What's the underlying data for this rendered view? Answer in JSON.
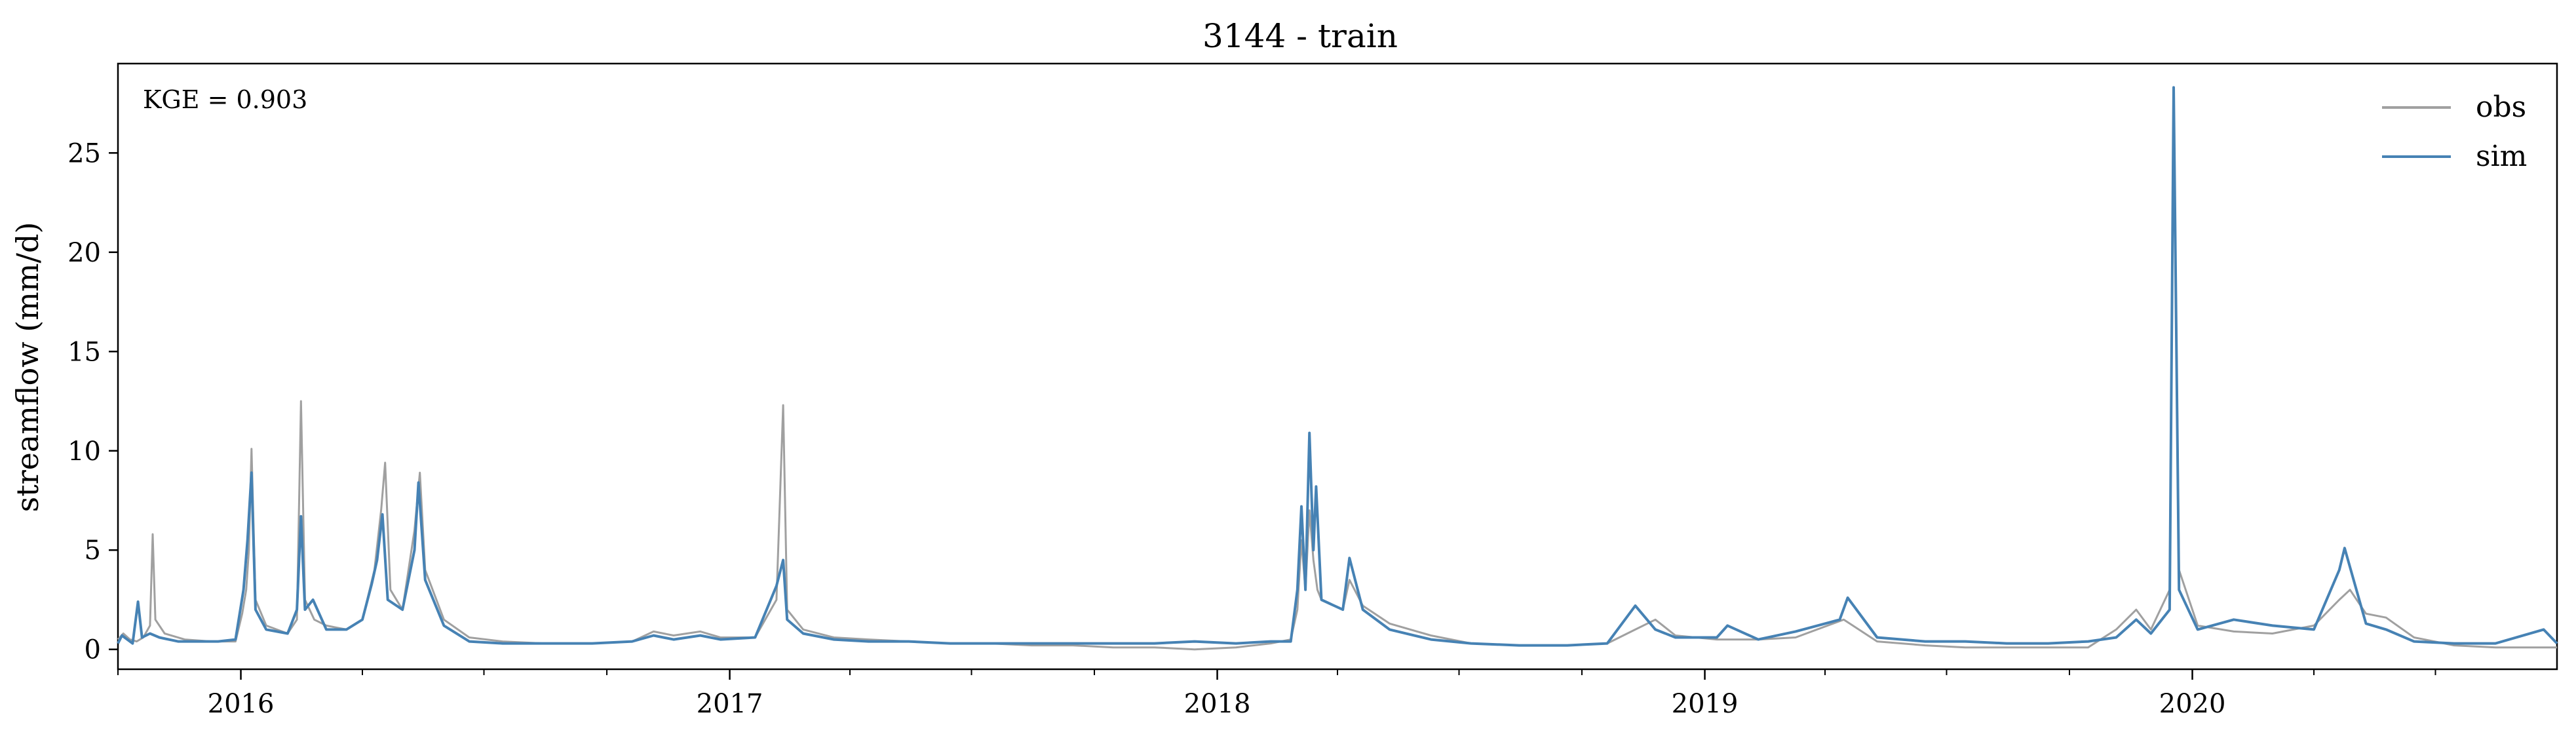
{
  "chart_data": {
    "type": "line",
    "title": "3144 - train",
    "xlabel": "",
    "ylabel": "streamflow (mm/d)",
    "annotation": "KGE = 0.903",
    "xlim": [
      "2015-10-01",
      "2020-09-30"
    ],
    "ylim": [
      -1,
      29.5
    ],
    "x_ticks": [
      "2016-01-01",
      "2017-01-01",
      "2018-01-01",
      "2019-01-01",
      "2020-01-01"
    ],
    "x_tick_labels": [
      "2016",
      "2017",
      "2018",
      "2019",
      "2020"
    ],
    "y_ticks": [
      0,
      5,
      10,
      15,
      20,
      25
    ],
    "y_tick_labels": [
      "0",
      "5",
      "10",
      "15",
      "20",
      "25"
    ],
    "grid": false,
    "legend": {
      "position": "top-right",
      "entries": [
        "obs",
        "sim"
      ]
    },
    "colors": {
      "obs": "#a0a0a0",
      "sim": "#4682b4"
    },
    "series": [
      {
        "name": "obs",
        "color": "#a0a0a0",
        "points": [
          [
            "2015-10-01",
            0.5
          ],
          [
            "2015-10-05",
            0.8
          ],
          [
            "2015-10-10",
            0.5
          ],
          [
            "2015-10-15",
            0.4
          ],
          [
            "2015-10-20",
            0.6
          ],
          [
            "2015-10-25",
            1.2
          ],
          [
            "2015-10-27",
            5.8
          ],
          [
            "2015-10-29",
            1.5
          ],
          [
            "2015-11-05",
            0.8
          ],
          [
            "2015-11-20",
            0.5
          ],
          [
            "2015-12-10",
            0.4
          ],
          [
            "2015-12-28",
            0.4
          ],
          [
            "2016-01-02",
            1.8
          ],
          [
            "2016-01-05",
            3.0
          ],
          [
            "2016-01-07",
            5.0
          ],
          [
            "2016-01-09",
            10.1
          ],
          [
            "2016-01-12",
            2.5
          ],
          [
            "2016-01-20",
            1.2
          ],
          [
            "2016-02-05",
            0.8
          ],
          [
            "2016-02-12",
            1.5
          ],
          [
            "2016-02-15",
            12.5
          ],
          [
            "2016-02-18",
            2.5
          ],
          [
            "2016-02-25",
            1.5
          ],
          [
            "2016-03-05",
            1.2
          ],
          [
            "2016-03-20",
            1.0
          ],
          [
            "2016-04-01",
            1.5
          ],
          [
            "2016-04-10",
            4.0
          ],
          [
            "2016-04-15",
            7.0
          ],
          [
            "2016-04-18",
            9.4
          ],
          [
            "2016-04-22",
            3.0
          ],
          [
            "2016-05-01",
            2.0
          ],
          [
            "2016-05-10",
            6.0
          ],
          [
            "2016-05-14",
            8.9
          ],
          [
            "2016-05-18",
            4.0
          ],
          [
            "2016-06-01",
            1.5
          ],
          [
            "2016-06-20",
            0.6
          ],
          [
            "2016-07-15",
            0.4
          ],
          [
            "2016-08-15",
            0.3
          ],
          [
            "2016-09-20",
            0.3
          ],
          [
            "2016-10-20",
            0.4
          ],
          [
            "2016-11-05",
            0.9
          ],
          [
            "2016-11-20",
            0.7
          ],
          [
            "2016-12-10",
            0.9
          ],
          [
            "2016-12-25",
            0.6
          ],
          [
            "2017-01-20",
            0.6
          ],
          [
            "2017-02-05",
            2.5
          ],
          [
            "2017-02-10",
            12.3
          ],
          [
            "2017-02-13",
            2.0
          ],
          [
            "2017-02-25",
            1.0
          ],
          [
            "2017-03-20",
            0.6
          ],
          [
            "2017-04-15",
            0.5
          ],
          [
            "2017-05-15",
            0.4
          ],
          [
            "2017-06-15",
            0.3
          ],
          [
            "2017-07-15",
            0.3
          ],
          [
            "2017-08-15",
            0.2
          ],
          [
            "2017-09-15",
            0.2
          ],
          [
            "2017-10-15",
            0.1
          ],
          [
            "2017-11-15",
            0.1
          ],
          [
            "2017-12-15",
            0.0
          ],
          [
            "2018-01-15",
            0.1
          ],
          [
            "2018-02-10",
            0.3
          ],
          [
            "2018-02-25",
            0.5
          ],
          [
            "2018-03-02",
            2.0
          ],
          [
            "2018-03-05",
            5.5
          ],
          [
            "2018-03-08",
            3.0
          ],
          [
            "2018-03-11",
            7.0
          ],
          [
            "2018-03-14",
            4.5
          ],
          [
            "2018-03-17",
            3.0
          ],
          [
            "2018-03-20",
            2.5
          ],
          [
            "2018-04-05",
            2.0
          ],
          [
            "2018-04-10",
            3.5
          ],
          [
            "2018-04-20",
            2.2
          ],
          [
            "2018-05-10",
            1.3
          ],
          [
            "2018-06-10",
            0.7
          ],
          [
            "2018-07-10",
            0.3
          ],
          [
            "2018-08-15",
            0.2
          ],
          [
            "2018-09-20",
            0.2
          ],
          [
            "2018-10-20",
            0.3
          ],
          [
            "2018-11-10",
            1.0
          ],
          [
            "2018-11-25",
            1.5
          ],
          [
            "2018-12-10",
            0.7
          ],
          [
            "2019-01-10",
            0.5
          ],
          [
            "2019-02-10",
            0.5
          ],
          [
            "2019-03-10",
            0.6
          ],
          [
            "2019-04-15",
            1.5
          ],
          [
            "2019-05-10",
            0.4
          ],
          [
            "2019-06-15",
            0.2
          ],
          [
            "2019-07-15",
            0.1
          ],
          [
            "2019-08-15",
            0.1
          ],
          [
            "2019-09-15",
            0.1
          ],
          [
            "2019-10-15",
            0.1
          ],
          [
            "2019-11-05",
            1.0
          ],
          [
            "2019-11-20",
            2.0
          ],
          [
            "2019-12-01",
            1.0
          ],
          [
            "2019-12-15",
            3.0
          ],
          [
            "2019-12-18",
            28.3
          ],
          [
            "2019-12-22",
            4.0
          ],
          [
            "2020-01-05",
            1.2
          ],
          [
            "2020-02-01",
            0.9
          ],
          [
            "2020-03-01",
            0.8
          ],
          [
            "2020-04-01",
            1.2
          ],
          [
            "2020-04-20",
            2.5
          ],
          [
            "2020-04-28",
            3.0
          ],
          [
            "2020-05-10",
            1.8
          ],
          [
            "2020-05-25",
            1.6
          ],
          [
            "2020-06-15",
            0.6
          ],
          [
            "2020-07-15",
            0.2
          ],
          [
            "2020-08-15",
            0.1
          ],
          [
            "2020-09-30",
            0.1
          ]
        ]
      },
      {
        "name": "sim",
        "color": "#4682b4",
        "points": [
          [
            "2015-10-01",
            0.3
          ],
          [
            "2015-10-04",
            0.7
          ],
          [
            "2015-10-08",
            0.5
          ],
          [
            "2015-10-12",
            0.3
          ],
          [
            "2015-10-16",
            2.4
          ],
          [
            "2015-10-19",
            0.6
          ],
          [
            "2015-10-25",
            0.8
          ],
          [
            "2015-11-01",
            0.6
          ],
          [
            "2015-11-15",
            0.4
          ],
          [
            "2015-12-15",
            0.4
          ],
          [
            "2015-12-28",
            0.5
          ],
          [
            "2016-01-03",
            3.0
          ],
          [
            "2016-01-06",
            5.5
          ],
          [
            "2016-01-09",
            8.9
          ],
          [
            "2016-01-12",
            2.0
          ],
          [
            "2016-01-20",
            1.0
          ],
          [
            "2016-02-05",
            0.8
          ],
          [
            "2016-02-12",
            2.0
          ],
          [
            "2016-02-15",
            6.7
          ],
          [
            "2016-02-18",
            2.0
          ],
          [
            "2016-02-24",
            2.5
          ],
          [
            "2016-03-05",
            1.0
          ],
          [
            "2016-03-20",
            1.0
          ],
          [
            "2016-04-01",
            1.5
          ],
          [
            "2016-04-08",
            3.3
          ],
          [
            "2016-04-12",
            4.5
          ],
          [
            "2016-04-16",
            6.8
          ],
          [
            "2016-04-20",
            2.5
          ],
          [
            "2016-05-01",
            2.0
          ],
          [
            "2016-05-10",
            5.0
          ],
          [
            "2016-05-13",
            8.4
          ],
          [
            "2016-05-18",
            3.5
          ],
          [
            "2016-06-01",
            1.2
          ],
          [
            "2016-06-20",
            0.4
          ],
          [
            "2016-07-15",
            0.3
          ],
          [
            "2016-08-15",
            0.3
          ],
          [
            "2016-09-20",
            0.3
          ],
          [
            "2016-10-20",
            0.4
          ],
          [
            "2016-11-05",
            0.7
          ],
          [
            "2016-11-20",
            0.5
          ],
          [
            "2016-12-10",
            0.7
          ],
          [
            "2016-12-25",
            0.5
          ],
          [
            "2017-01-20",
            0.6
          ],
          [
            "2017-02-05",
            3.2
          ],
          [
            "2017-02-10",
            4.5
          ],
          [
            "2017-02-13",
            1.5
          ],
          [
            "2017-02-25",
            0.8
          ],
          [
            "2017-03-20",
            0.5
          ],
          [
            "2017-04-15",
            0.4
          ],
          [
            "2017-05-15",
            0.4
          ],
          [
            "2017-06-15",
            0.3
          ],
          [
            "2017-07-15",
            0.3
          ],
          [
            "2017-08-15",
            0.3
          ],
          [
            "2017-09-15",
            0.3
          ],
          [
            "2017-10-15",
            0.3
          ],
          [
            "2017-11-15",
            0.3
          ],
          [
            "2017-12-15",
            0.4
          ],
          [
            "2018-01-15",
            0.3
          ],
          [
            "2018-02-10",
            0.4
          ],
          [
            "2018-02-25",
            0.4
          ],
          [
            "2018-03-02",
            3.0
          ],
          [
            "2018-03-05",
            7.2
          ],
          [
            "2018-03-08",
            3.0
          ],
          [
            "2018-03-11",
            10.9
          ],
          [
            "2018-03-14",
            5.0
          ],
          [
            "2018-03-16",
            8.2
          ],
          [
            "2018-03-20",
            2.5
          ],
          [
            "2018-04-05",
            2.0
          ],
          [
            "2018-04-10",
            4.6
          ],
          [
            "2018-04-20",
            2.0
          ],
          [
            "2018-05-10",
            1.0
          ],
          [
            "2018-06-10",
            0.5
          ],
          [
            "2018-07-10",
            0.3
          ],
          [
            "2018-08-15",
            0.2
          ],
          [
            "2018-09-20",
            0.2
          ],
          [
            "2018-10-20",
            0.3
          ],
          [
            "2018-11-10",
            2.2
          ],
          [
            "2018-11-25",
            1.0
          ],
          [
            "2018-12-10",
            0.6
          ],
          [
            "2019-01-10",
            0.6
          ],
          [
            "2019-01-18",
            1.2
          ],
          [
            "2019-02-10",
            0.5
          ],
          [
            "2019-03-10",
            0.9
          ],
          [
            "2019-04-12",
            1.5
          ],
          [
            "2019-04-18",
            2.6
          ],
          [
            "2019-05-10",
            0.6
          ],
          [
            "2019-06-15",
            0.4
          ],
          [
            "2019-07-15",
            0.4
          ],
          [
            "2019-08-15",
            0.3
          ],
          [
            "2019-09-15",
            0.3
          ],
          [
            "2019-10-15",
            0.4
          ],
          [
            "2019-11-05",
            0.6
          ],
          [
            "2019-11-20",
            1.5
          ],
          [
            "2019-12-01",
            0.8
          ],
          [
            "2019-12-15",
            2.0
          ],
          [
            "2019-12-18",
            28.3
          ],
          [
            "2019-12-22",
            3.0
          ],
          [
            "2020-01-05",
            1.0
          ],
          [
            "2020-02-01",
            1.5
          ],
          [
            "2020-03-01",
            1.2
          ],
          [
            "2020-04-01",
            1.0
          ],
          [
            "2020-04-20",
            4.0
          ],
          [
            "2020-04-24",
            5.1
          ],
          [
            "2020-05-10",
            1.3
          ],
          [
            "2020-05-25",
            1.0
          ],
          [
            "2020-06-15",
            0.4
          ],
          [
            "2020-07-15",
            0.3
          ],
          [
            "2020-08-15",
            0.3
          ],
          [
            "2020-09-20",
            1.0
          ],
          [
            "2020-09-30",
            0.3
          ]
        ]
      }
    ]
  }
}
